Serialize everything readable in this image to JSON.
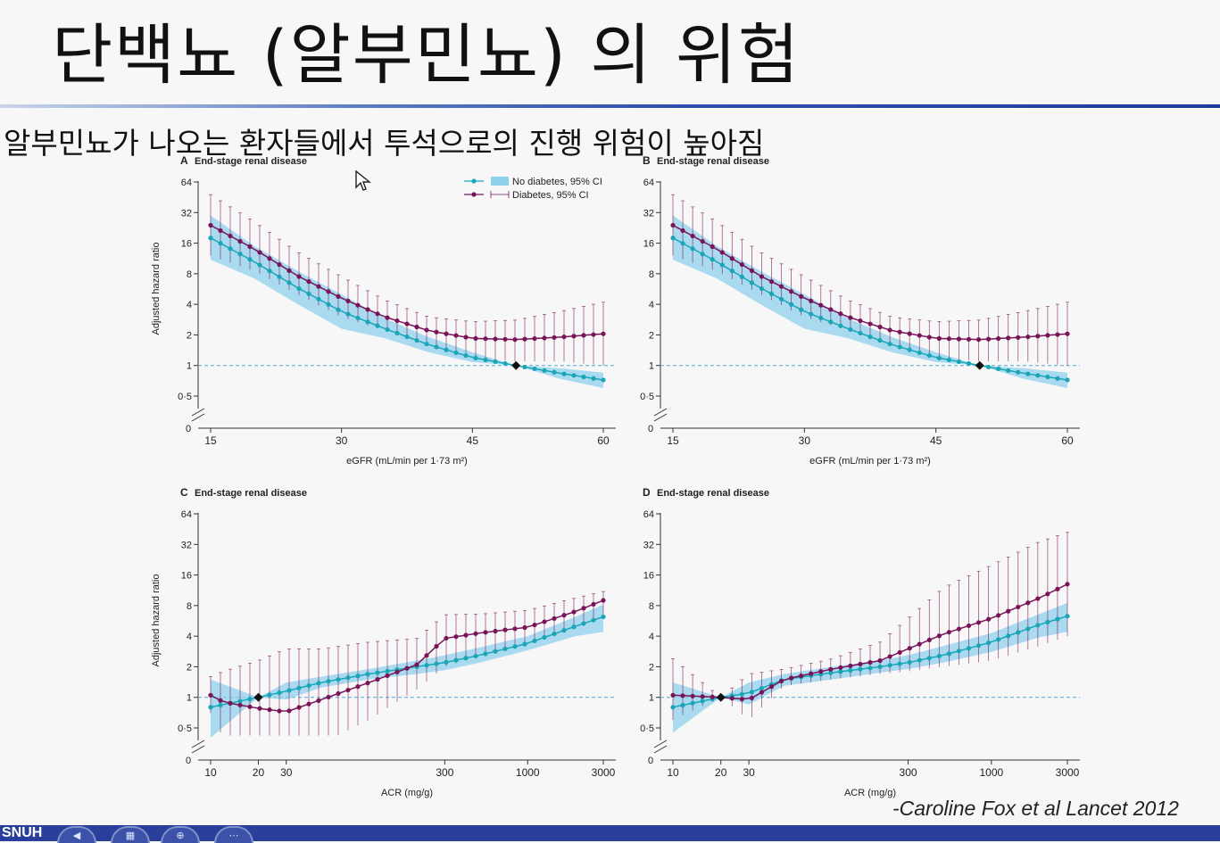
{
  "slide": {
    "title": "단백뇨 (알부민뇨) 의 위험",
    "subtitle": "알부민뇨가 나오는 환자들에서 투석으로의 진행 위험이 높아짐",
    "citation": "-Caroline Fox et al Lancet 2012",
    "footer_logo": "SNUH"
  },
  "colors": {
    "no_diabetes": "#1aa6b7",
    "no_diabetes_band": "#8fd0ec",
    "diabetes": "#7a1458",
    "reference": "#4aa8d8",
    "divider": "#2f4fae",
    "footer": "#2a3f9b"
  },
  "chart_data": [
    {
      "panel": "A",
      "type": "line",
      "title": "End-stage renal disease",
      "xlabel": "eGFR (mL/min per 1·73 m²)",
      "ylabel": "Adjusted hazard ratio",
      "xscale": "linear",
      "yscale": "log2",
      "xlim": [
        15,
        60
      ],
      "xticks": [
        15,
        30,
        45,
        60
      ],
      "yticks": [
        0.5,
        1,
        2,
        4,
        8,
        16,
        32,
        64
      ],
      "ytick_labels": [
        "0·5",
        "1",
        "2",
        "4",
        "8",
        "16",
        "32",
        "64"
      ],
      "reference_line": 1,
      "legend": [
        {
          "label": "No diabetes, 95% CI",
          "series": "no_diabetes"
        },
        {
          "label": "Diabetes, 95% CI",
          "series": "diabetes"
        }
      ],
      "series": [
        {
          "name": "No diabetes",
          "x": [
            15,
            20,
            25,
            30,
            35,
            40,
            45,
            50,
            55,
            60
          ],
          "values": [
            18,
            10.5,
            5.8,
            3.4,
            2.3,
            1.6,
            1.2,
            1.0,
            0.84,
            0.72
          ],
          "lower": [
            11,
            7.2,
            4.0,
            2.3,
            1.85,
            1.35,
            1.08,
            1.0,
            0.74,
            0.6
          ],
          "upper": [
            30,
            15,
            8.5,
            5.0,
            2.9,
            1.9,
            1.35,
            1.0,
            0.94,
            0.85
          ]
        },
        {
          "name": "Diabetes",
          "x": [
            15,
            20,
            25,
            30,
            35,
            40,
            45,
            50,
            55,
            60
          ],
          "values": [
            24,
            14,
            7.6,
            4.6,
            3.0,
            2.2,
            1.85,
            1.8,
            1.9,
            2.05
          ],
          "lower": [
            12,
            8.5,
            5.0,
            3.0,
            2.2,
            1.7,
            1.2,
            1.1,
            1.1,
            1.0
          ],
          "upper": [
            48,
            26,
            13,
            7.5,
            4.4,
            3.0,
            2.7,
            2.8,
            3.4,
            4.2
          ]
        }
      ],
      "reference_point": {
        "x": 50,
        "y": 1
      }
    },
    {
      "panel": "B",
      "type": "line",
      "title": "End-stage renal disease",
      "xlabel": "eGFR (mL/min per 1·73 m²)",
      "ylabel": "",
      "xscale": "linear",
      "yscale": "log2",
      "xlim": [
        15,
        60
      ],
      "xticks": [
        15,
        30,
        45,
        60
      ],
      "yticks": [
        0.5,
        1,
        2,
        4,
        8,
        16,
        32,
        64
      ],
      "reference_line": 1,
      "series": [
        {
          "name": "No diabetes",
          "x": [
            15,
            20,
            25,
            30,
            35,
            40,
            45,
            50,
            55,
            60
          ],
          "values": [
            18,
            10.5,
            5.8,
            3.4,
            2.3,
            1.6,
            1.2,
            1.0,
            0.84,
            0.72
          ],
          "lower": [
            11,
            7.2,
            4.0,
            2.3,
            1.85,
            1.35,
            1.08,
            1.0,
            0.74,
            0.6
          ],
          "upper": [
            30,
            15,
            8.5,
            5.0,
            2.9,
            1.9,
            1.35,
            1.0,
            0.94,
            0.85
          ]
        },
        {
          "name": "Diabetes",
          "x": [
            15,
            20,
            25,
            30,
            35,
            40,
            45,
            50,
            55,
            60
          ],
          "values": [
            24,
            14,
            7.6,
            4.6,
            3.0,
            2.2,
            1.85,
            1.8,
            1.9,
            2.05
          ],
          "lower": [
            12,
            8.5,
            5.0,
            3.0,
            2.2,
            1.7,
            1.2,
            1.1,
            1.1,
            1.0
          ],
          "upper": [
            48,
            26,
            13,
            7.5,
            4.4,
            3.0,
            2.7,
            2.8,
            3.4,
            4.2
          ]
        }
      ],
      "reference_point": {
        "x": 50,
        "y": 1
      }
    },
    {
      "panel": "C",
      "type": "line",
      "title": "End-stage renal disease",
      "xlabel": "ACR (mg/g)",
      "ylabel": "Adjusted hazard ratio",
      "xscale": "log10",
      "yscale": "log2",
      "xlim": [
        10,
        3000
      ],
      "xticks": [
        10,
        20,
        30,
        300,
        1000,
        3000
      ],
      "yticks": [
        0.5,
        1,
        2,
        4,
        8,
        16,
        32,
        64
      ],
      "reference_line": 1,
      "series": [
        {
          "name": "No diabetes",
          "x": [
            10,
            20,
            30,
            50,
            100,
            200,
            300,
            500,
            1000,
            2000,
            3000
          ],
          "values": [
            0.8,
            1.0,
            1.15,
            1.4,
            1.7,
            2.0,
            2.2,
            2.6,
            3.4,
            5.0,
            6.2
          ],
          "lower": [
            0.4,
            1.0,
            0.95,
            1.25,
            1.5,
            1.7,
            1.85,
            2.2,
            2.9,
            4.0,
            4.4
          ],
          "upper": [
            1.5,
            1.0,
            1.4,
            1.6,
            1.9,
            2.3,
            2.6,
            3.1,
            4.0,
            6.2,
            8.2
          ]
        },
        {
          "name": "Diabetes",
          "x": [
            10,
            12,
            20,
            30,
            50,
            100,
            200,
            300,
            500,
            800,
            1000,
            2000,
            3000
          ],
          "values": [
            1.05,
            0.9,
            0.78,
            0.72,
            0.95,
            1.4,
            2.1,
            3.8,
            4.3,
            4.7,
            4.9,
            7.0,
            9.0
          ],
          "lower": [
            0.7,
            0.4,
            0.3,
            0.3,
            0.35,
            0.6,
            1.2,
            2.0,
            2.6,
            3.0,
            3.4,
            5.0,
            6.5
          ],
          "upper": [
            1.6,
            1.8,
            2.3,
            3.0,
            3.0,
            3.5,
            3.8,
            6.5,
            6.6,
            7.0,
            7.2,
            9.5,
            11
          ]
        }
      ],
      "reference_point": {
        "x": 20,
        "y": 1
      }
    },
    {
      "panel": "D",
      "type": "line",
      "title": "End-stage renal disease",
      "xlabel": "ACR (mg/g)",
      "ylabel": "",
      "xscale": "log10",
      "yscale": "log2",
      "xlim": [
        10,
        3000
      ],
      "xticks": [
        10,
        20,
        30,
        300,
        1000,
        3000
      ],
      "yticks": [
        0.5,
        1,
        2,
        4,
        8,
        16,
        32,
        64
      ],
      "reference_line": 1,
      "series": [
        {
          "name": "No diabetes",
          "x": [
            10,
            20,
            30,
            50,
            100,
            200,
            300,
            500,
            1000,
            2000,
            3000
          ],
          "values": [
            0.8,
            1.0,
            1.1,
            1.5,
            1.75,
            2.0,
            2.2,
            2.6,
            3.5,
            5.2,
            6.3
          ],
          "lower": [
            0.45,
            1.0,
            0.85,
            1.3,
            1.5,
            1.75,
            1.9,
            2.2,
            2.8,
            3.9,
            4.4
          ],
          "upper": [
            1.4,
            1.0,
            1.4,
            1.7,
            2.0,
            2.3,
            2.6,
            3.2,
            4.3,
            6.6,
            8.5
          ]
        },
        {
          "name": "Diabetes",
          "x": [
            10,
            20,
            30,
            50,
            100,
            200,
            300,
            500,
            1000,
            2000,
            3000
          ],
          "values": [
            1.05,
            1.0,
            0.95,
            1.5,
            1.9,
            2.3,
            3.0,
            4.2,
            6.0,
            9.5,
            13
          ]
        },
        {
          "name": "Diabetes CI",
          "x": [
            10,
            20,
            30,
            50,
            100,
            200,
            300,
            500,
            1000,
            2000,
            3000
          ],
          "values": [
            1.05,
            1.0,
            0.95,
            1.5,
            1.9,
            2.3,
            3.0,
            4.2,
            6.0,
            9.5,
            13
          ],
          "lower": [
            0.6,
            1.0,
            0.6,
            1.3,
            1.5,
            1.7,
            1.8,
            2.0,
            2.3,
            3.2,
            4.0
          ],
          "upper": [
            2.4,
            1.0,
            1.7,
            1.9,
            2.4,
            3.5,
            6.0,
            12,
            20,
            34,
            42
          ]
        }
      ],
      "reference_point": {
        "x": 20,
        "y": 1
      }
    }
  ]
}
